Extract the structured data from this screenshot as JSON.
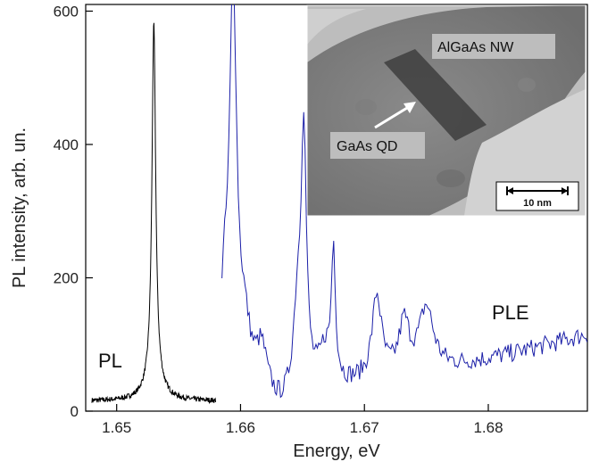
{
  "chart_data": {
    "type": "line",
    "xlabel": "Energy, eV",
    "ylabel": "PL intensity, arb. un.",
    "xlim": [
      1.6475,
      1.688
    ],
    "ylim": [
      0,
      610
    ],
    "x_ticks": [
      1.65,
      1.66,
      1.67,
      1.68
    ],
    "x_tick_labels": [
      "1.65",
      "1.66",
      "1.67",
      "1.68"
    ],
    "y_ticks": [
      0,
      200,
      400,
      600
    ],
    "y_tick_labels": [
      "0",
      "200",
      "400",
      "600"
    ],
    "grid": false,
    "series": [
      {
        "name": "PL",
        "color": "#000000",
        "baseline": 15,
        "noise": 4,
        "x_range": [
          1.648,
          1.658
        ],
        "peaks": [
          {
            "x": 1.653,
            "height": 530,
            "width": 0.00018
          },
          {
            "x": 1.653,
            "height": 35,
            "width": 0.0007
          }
        ]
      },
      {
        "name": "PLE",
        "color": "#1b1fa8",
        "baseline_start": 20,
        "baseline_end": 115,
        "noise": 14,
        "x_range": [
          1.6585,
          1.688
        ],
        "peaks": [
          {
            "x": 1.6594,
            "height": 585,
            "width": 0.00035
          },
          {
            "x": 1.6587,
            "height": 120,
            "width": 0.0004
          },
          {
            "x": 1.6603,
            "height": 80,
            "width": 0.0006
          },
          {
            "x": 1.6617,
            "height": 60,
            "width": 0.0005
          },
          {
            "x": 1.6651,
            "height": 375,
            "width": 0.00025
          },
          {
            "x": 1.6646,
            "height": 120,
            "width": 0.0004
          },
          {
            "x": 1.6675,
            "height": 195,
            "width": 0.0002
          },
          {
            "x": 1.6668,
            "height": 50,
            "width": 0.0005
          },
          {
            "x": 1.671,
            "height": 125,
            "width": 0.00045
          },
          {
            "x": 1.6732,
            "height": 75,
            "width": 0.0005
          },
          {
            "x": 1.675,
            "height": 95,
            "width": 0.0007
          }
        ]
      }
    ],
    "annotations": {
      "pl": "PL",
      "ple": "PLE"
    },
    "inset": {
      "wire_label": "AlGaAs NW",
      "dot_label": "GaAs QD",
      "scale_label": "10 nm"
    }
  }
}
